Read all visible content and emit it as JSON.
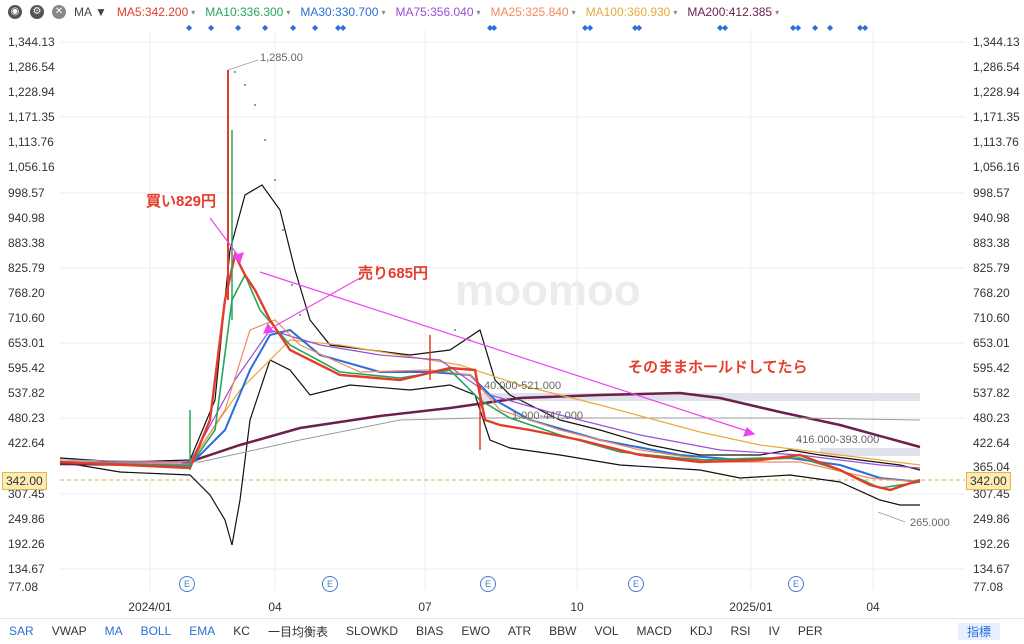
{
  "toolbar": {
    "indicator_label": "MA",
    "eye_icon": "eye-icon",
    "gear_icon": "gear-icon",
    "close_icon": "close-icon",
    "mas": [
      {
        "label": "MA5:342.200",
        "color": "#e53b2a"
      },
      {
        "label": "MA10:336.300",
        "color": "#26a65b"
      },
      {
        "label": "MA30:330.700",
        "color": "#2a6fdb"
      },
      {
        "label": "MA75:356.040",
        "color": "#9b4fd6"
      },
      {
        "label": "MA25:325.840",
        "color": "#f08a5d"
      },
      {
        "label": "MA100:360.930",
        "color": "#e8a93a"
      },
      {
        "label": "MA200:412.385",
        "color": "#6b1f4a"
      }
    ]
  },
  "y_axis": [
    "1,344.13",
    "1,286.54",
    "1,228.94",
    "1,171.35",
    "1,113.76",
    "1,056.16",
    "998.57",
    "940.98",
    "883.38",
    "825.79",
    "768.20",
    "710.60",
    "653.01",
    "595.42",
    "537.82",
    "480.23",
    "422.64",
    "365.04",
    "307.45",
    "249.86",
    "192.26",
    "134.67",
    "77.08"
  ],
  "x_axis": [
    "2024/01",
    "04",
    "07",
    "10",
    "2025/01",
    "04"
  ],
  "current_price": "342.00",
  "watermark": "moomoo",
  "annotations": {
    "buy": "買い829円",
    "sell": "売り685円",
    "hold": "そのままホールドしてたら"
  },
  "levels": {
    "high": "1,285.00",
    "low": "265.000",
    "band1": "40.000-521.000",
    "band2": "1.000-447.000",
    "band3": "416.000-393.000"
  },
  "earnings_marker": "E",
  "bottom_tabs": [
    "SAR",
    "VWAP",
    "MA",
    "BOLL",
    "EMA",
    "KC",
    "一目均衡表",
    "SLOWKD",
    "BIAS",
    "EWO",
    "ATR",
    "BBW",
    "VOL",
    "MACD",
    "KDJ",
    "RSI",
    "IV",
    "PER",
    "指標"
  ],
  "colors": {
    "up": "#e53b2a",
    "down": "#26a65b",
    "accent": "#2a6fdb"
  }
}
